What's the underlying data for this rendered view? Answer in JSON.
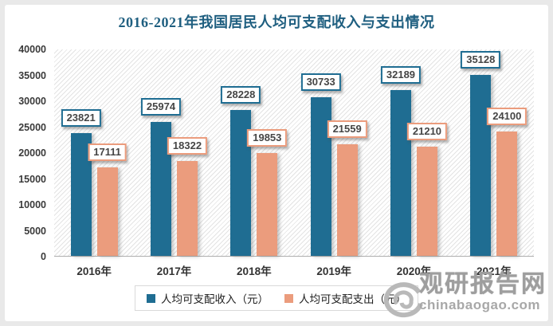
{
  "title": "2016-2021年我国居民人均可支配收入与支出情况",
  "chart_data": {
    "type": "bar",
    "categories": [
      "2016年",
      "2017年",
      "2018年",
      "2019年",
      "2020年",
      "2021年"
    ],
    "series": [
      {
        "name": "人均可支配收入（元）",
        "color": "#1f6d92",
        "values": [
          23821,
          25974,
          28228,
          30733,
          32189,
          35128
        ]
      },
      {
        "name": "人均可支配支出（元）",
        "color": "#eb9c7d",
        "values": [
          17111,
          18322,
          19853,
          21559,
          21210,
          24100
        ]
      }
    ],
    "title": "2016-2021年我国居民人均可支配收入与支出情况",
    "xlabel": "",
    "ylabel": "",
    "ylim": [
      0,
      40000
    ],
    "ytick_step": 5000,
    "grid": false,
    "legend_position": "bottom",
    "plot_background": "diagonal-hatch",
    "data_labels": "boxed above bars"
  },
  "colors": {
    "title": "#1f5f80",
    "income_bar": "#1f6d92",
    "expense_bar": "#eb9c7d",
    "axis_text": "#3a3a3a",
    "legend_border": "#d9d9d9",
    "watermark_gray": "#9e9e9e"
  },
  "watermark": {
    "site_name": "观研报告网",
    "domain": "chinabaogao.com"
  }
}
